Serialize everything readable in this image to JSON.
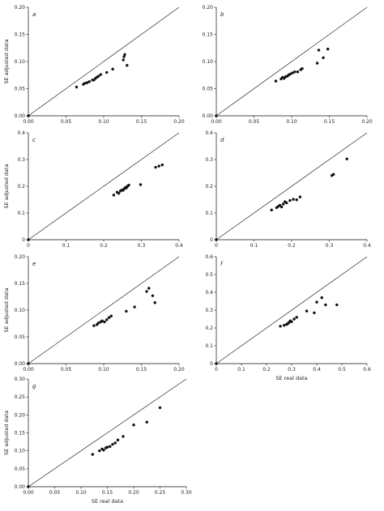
{
  "figure": {
    "ylabel": "SE adjusted data",
    "xlabel": "SE real data"
  },
  "chart_data": [
    {
      "type": "scatter",
      "panel": "a",
      "xlim": [
        0,
        0.2
      ],
      "ylim": [
        0,
        0.2
      ],
      "xticks": [
        "0.00",
        "0.05",
        "0.10",
        "0.15",
        "0.20"
      ],
      "yticks": [
        "0.00",
        "0.05",
        "0.10",
        "0.15",
        "0.20"
      ],
      "xlabel": "",
      "ylabel": "SE adjusted data",
      "diagonal": true,
      "x": [
        0.0,
        0.064,
        0.073,
        0.075,
        0.078,
        0.081,
        0.085,
        0.087,
        0.089,
        0.091,
        0.093,
        0.096,
        0.104,
        0.112,
        0.126,
        0.127,
        0.128,
        0.131
      ],
      "y": [
        0.0,
        0.053,
        0.058,
        0.06,
        0.061,
        0.063,
        0.066,
        0.066,
        0.069,
        0.071,
        0.073,
        0.076,
        0.08,
        0.086,
        0.103,
        0.109,
        0.113,
        0.093
      ]
    },
    {
      "type": "scatter",
      "panel": "b",
      "xlim": [
        0,
        0.2
      ],
      "ylim": [
        0,
        0.2
      ],
      "xticks": [
        "0.00",
        "0.05",
        "0.10",
        "0.15",
        "0.20"
      ],
      "yticks": [
        "0.00",
        "0.05",
        "0.10",
        "0.15",
        "0.20"
      ],
      "xlabel": "",
      "ylabel": "",
      "diagonal": true,
      "x": [
        0.0,
        0.079,
        0.086,
        0.088,
        0.09,
        0.092,
        0.094,
        0.096,
        0.098,
        0.101,
        0.104,
        0.108,
        0.112,
        0.114,
        0.134,
        0.136,
        0.142,
        0.148
      ],
      "y": [
        0.0,
        0.064,
        0.068,
        0.071,
        0.069,
        0.072,
        0.073,
        0.075,
        0.077,
        0.079,
        0.081,
        0.081,
        0.085,
        0.087,
        0.097,
        0.121,
        0.107,
        0.123
      ]
    },
    {
      "type": "scatter",
      "panel": "c",
      "xlim": [
        0,
        0.45
      ],
      "ylim": [
        0,
        0.45
      ],
      "xticks": [
        "0",
        "0.1",
        "0.2",
        "0.3",
        "0.4"
      ],
      "yticks": [
        "0",
        "0.1",
        "0.2",
        "0.3",
        "0.4"
      ],
      "xlabel": "",
      "ylabel": "SE adjusted data",
      "diagonal": true,
      "x": [
        0.0,
        0.255,
        0.265,
        0.27,
        0.275,
        0.28,
        0.283,
        0.287,
        0.29,
        0.293,
        0.296,
        0.3,
        0.335,
        0.38,
        0.39,
        0.4
      ],
      "y": [
        0.0,
        0.188,
        0.2,
        0.195,
        0.205,
        0.21,
        0.208,
        0.215,
        0.22,
        0.218,
        0.225,
        0.23,
        0.232,
        0.305,
        0.31,
        0.315
      ]
    },
    {
      "type": "scatter",
      "panel": "d",
      "xlim": [
        0,
        0.45
      ],
      "ylim": [
        0,
        0.45
      ],
      "xticks": [
        "0",
        "0.1",
        "0.2",
        "0.3",
        "0.4"
      ],
      "yticks": [
        "0",
        "0.1",
        "0.2",
        "0.3",
        "0.4"
      ],
      "xlabel": "",
      "ylabel": "",
      "diagonal": true,
      "x": [
        0.0,
        0.165,
        0.18,
        0.185,
        0.19,
        0.195,
        0.2,
        0.205,
        0.21,
        0.22,
        0.23,
        0.24,
        0.25,
        0.345,
        0.35,
        0.39
      ],
      "y": [
        0.0,
        0.125,
        0.135,
        0.14,
        0.145,
        0.138,
        0.15,
        0.16,
        0.155,
        0.165,
        0.17,
        0.168,
        0.18,
        0.27,
        0.275,
        0.34
      ]
    },
    {
      "type": "scatter",
      "panel": "e",
      "xlim": [
        0,
        0.2
      ],
      "ylim": [
        0,
        0.2
      ],
      "xticks": [
        "0.00",
        "0.05",
        "0.10",
        "0.15",
        "0.20"
      ],
      "yticks": [
        "0.00",
        "0.05",
        "0.10",
        "0.15",
        "0.20"
      ],
      "xlabel": "",
      "ylabel": "SE adjusted data",
      "diagonal": true,
      "x": [
        0.0,
        0.087,
        0.091,
        0.093,
        0.096,
        0.098,
        0.101,
        0.104,
        0.107,
        0.11,
        0.13,
        0.141,
        0.157,
        0.16,
        0.165,
        0.168
      ],
      "y": [
        0.0,
        0.071,
        0.073,
        0.076,
        0.078,
        0.08,
        0.078,
        0.082,
        0.086,
        0.089,
        0.098,
        0.106,
        0.135,
        0.141,
        0.127,
        0.114
      ]
    },
    {
      "type": "scatter",
      "panel": "f",
      "xlim": [
        0,
        0.6
      ],
      "ylim": [
        0,
        0.6
      ],
      "xticks": [
        "0",
        "0.1",
        "0.2",
        "0.3",
        "0.4",
        "0.5",
        "0.6"
      ],
      "yticks": [
        "0",
        "0.1",
        "0.2",
        "0.3",
        "0.4",
        "0.5",
        "0.6"
      ],
      "xlabel": "SE real data",
      "ylabel": "",
      "diagonal": true,
      "x": [
        0.0,
        0.255,
        0.27,
        0.28,
        0.285,
        0.29,
        0.295,
        0.3,
        0.31,
        0.32,
        0.36,
        0.39,
        0.4,
        0.42,
        0.435,
        0.48
      ],
      "y": [
        0.0,
        0.21,
        0.215,
        0.22,
        0.225,
        0.232,
        0.24,
        0.235,
        0.25,
        0.26,
        0.295,
        0.285,
        0.345,
        0.37,
        0.33,
        0.33
      ]
    },
    {
      "type": "scatter",
      "panel": "g",
      "xlim": [
        0,
        0.3
      ],
      "ylim": [
        0,
        0.3
      ],
      "xticks": [
        "0.00",
        "0.05",
        "0.10",
        "0.15",
        "0.20",
        "0.25",
        "0.30"
      ],
      "yticks": [
        "0.00",
        "0.05",
        "0.10",
        "0.15",
        "0.20",
        "0.25",
        "0.30"
      ],
      "xlabel": "SE real data",
      "ylabel": "SE adjusted data",
      "diagonal": true,
      "x": [
        0.0,
        0.122,
        0.135,
        0.14,
        0.143,
        0.147,
        0.15,
        0.155,
        0.16,
        0.165,
        0.17,
        0.18,
        0.2,
        0.225,
        0.25
      ],
      "y": [
        0.0,
        0.09,
        0.1,
        0.105,
        0.102,
        0.108,
        0.11,
        0.112,
        0.118,
        0.122,
        0.13,
        0.14,
        0.172,
        0.18,
        0.22
      ]
    }
  ]
}
